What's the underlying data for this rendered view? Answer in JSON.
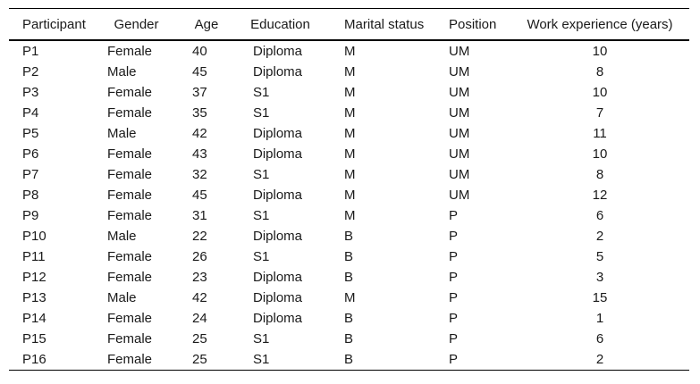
{
  "colors": {
    "background": "#ffffff",
    "text": "#1a1a1a",
    "rule": "#000000"
  },
  "table": {
    "columns": [
      {
        "label": "Participant"
      },
      {
        "label": "Gender"
      },
      {
        "label": "Age"
      },
      {
        "label": "Education"
      },
      {
        "label": "Marital status"
      },
      {
        "label": "Position"
      },
      {
        "label": "Work experience (years)"
      }
    ],
    "rows": [
      [
        "P1",
        "Female",
        "40",
        "Diploma",
        "M",
        "UM",
        "10"
      ],
      [
        "P2",
        "Male",
        "45",
        "Diploma",
        "M",
        "UM",
        "8"
      ],
      [
        "P3",
        "Female",
        "37",
        "S1",
        "M",
        "UM",
        "10"
      ],
      [
        "P4",
        "Female",
        "35",
        "S1",
        "M",
        "UM",
        "7"
      ],
      [
        "P5",
        "Male",
        "42",
        "Diploma",
        "M",
        "UM",
        "11"
      ],
      [
        "P6",
        "Female",
        "43",
        "Diploma",
        "M",
        "UM",
        "10"
      ],
      [
        "P7",
        "Female",
        "32",
        "S1",
        "M",
        "UM",
        "8"
      ],
      [
        "P8",
        "Female",
        "45",
        "Diploma",
        "M",
        "UM",
        "12"
      ],
      [
        "P9",
        "Female",
        "31",
        "S1",
        "M",
        "P",
        "6"
      ],
      [
        "P10",
        "Male",
        "22",
        "Diploma",
        "B",
        "P",
        "2"
      ],
      [
        "P11",
        "Female",
        "26",
        "S1",
        "B",
        "P",
        "5"
      ],
      [
        "P12",
        "Female",
        "23",
        "Diploma",
        "B",
        "P",
        "3"
      ],
      [
        "P13",
        "Male",
        "42",
        "Diploma",
        "M",
        "P",
        "15"
      ],
      [
        "P14",
        "Female",
        "24",
        "Diploma",
        "B",
        "P",
        "1"
      ],
      [
        "P15",
        "Female",
        "25",
        "S1",
        "B",
        "P",
        "6"
      ],
      [
        "P16",
        "Female",
        "25",
        "S1",
        "B",
        "P",
        "2"
      ]
    ]
  }
}
